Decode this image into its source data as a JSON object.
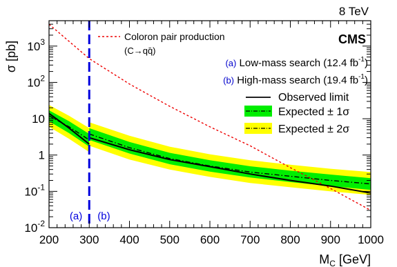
{
  "chart_data": {
    "type": "line",
    "energy_label": "8 TeV",
    "experiment_label": "CMS",
    "xlabel": {
      "main": "M",
      "sub": "C",
      "unit": " [GeV]"
    },
    "ylabel": "σ [pb]",
    "xlim": [
      200,
      1000
    ],
    "ylim": [
      0.01,
      5000
    ],
    "yscale": "log",
    "xticks": [
      200,
      300,
      400,
      500,
      600,
      700,
      800,
      900,
      1000
    ],
    "yticks": [
      {
        "value": 0.01,
        "base": "10",
        "exp": "-2"
      },
      {
        "value": 0.1,
        "base": "10",
        "exp": "-1"
      },
      {
        "value": 1,
        "base": "1",
        "exp": ""
      },
      {
        "value": 10,
        "base": "10",
        "exp": ""
      },
      {
        "value": 100,
        "base": "10",
        "exp": "2"
      },
      {
        "value": 1000,
        "base": "10",
        "exp": "3"
      }
    ],
    "boundary": {
      "x": 300,
      "left_label": "(a)",
      "right_label": "(b)",
      "color": "#0000dd"
    },
    "legend": {
      "position": "top-right",
      "coloron_label": "Coloron pair production",
      "coloron_process": "(C→qq̄)",
      "low_mass": {
        "tag": "(a)",
        "text": "Low-mass search (12.4 fb",
        "sup": "-1",
        "close": ")"
      },
      "high_mass": {
        "tag": "(b)",
        "text": "High-mass search (19.4 fb",
        "sup": "-1",
        "close": ")"
      },
      "observed": "Observed limit",
      "expected_1sigma": "Expected ± 1σ",
      "expected_2sigma": "Expected ± 2σ"
    },
    "colors": {
      "band_1sigma": "#00ee00",
      "band_2sigma": "#ffff00",
      "theory": "#ee0000",
      "observed": "#000000",
      "expected": "#000000"
    },
    "segments": [
      {
        "name": "Low-mass search",
        "x": [
          200,
          250,
          300
        ],
        "observed": [
          14,
          5.5,
          2.0
        ],
        "expected": [
          12,
          6.0,
          2.6
        ],
        "band1_lo": [
          8.5,
          4.0,
          1.7
        ],
        "band1_hi": [
          17,
          8.5,
          3.8
        ],
        "band2_lo": [
          6.0,
          2.8,
          1.2
        ],
        "band2_hi": [
          24,
          12,
          5.5
        ]
      },
      {
        "name": "High-mass search",
        "x": [
          300,
          400,
          500,
          600,
          700,
          800,
          900,
          1000
        ],
        "observed": [
          3.0,
          1.4,
          0.75,
          0.48,
          0.3,
          0.2,
          0.14,
          0.09
        ],
        "expected": [
          3.8,
          1.6,
          0.8,
          0.5,
          0.34,
          0.26,
          0.2,
          0.16
        ],
        "band1_lo": [
          2.6,
          1.1,
          0.56,
          0.35,
          0.24,
          0.18,
          0.14,
          0.11
        ],
        "band1_hi": [
          5.5,
          2.3,
          1.15,
          0.72,
          0.49,
          0.37,
          0.29,
          0.23
        ],
        "band2_lo": [
          1.8,
          0.75,
          0.4,
          0.25,
          0.17,
          0.13,
          0.1,
          0.08
        ],
        "band2_hi": [
          8.0,
          3.4,
          1.7,
          1.05,
          0.72,
          0.54,
          0.42,
          0.34
        ]
      }
    ],
    "theory": {
      "name": "Coloron pair production",
      "x": [
        200,
        300,
        400,
        500,
        600,
        700,
        800,
        900,
        1000
      ],
      "y": [
        4000,
        450,
        90,
        22,
        6.0,
        1.8,
        0.45,
        0.12,
        0.03
      ]
    }
  }
}
